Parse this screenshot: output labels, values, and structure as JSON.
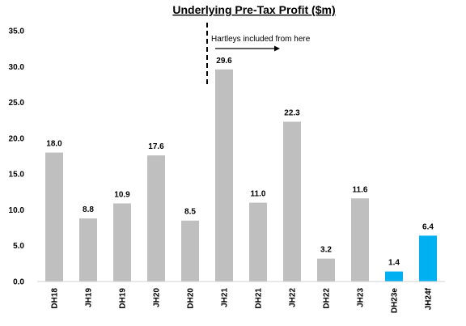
{
  "chart_data": {
    "type": "bar",
    "title": "Underlying Pre-Tax Profit ($m)",
    "xlabel": "",
    "ylabel": "",
    "ylim": [
      0,
      35
    ],
    "yticks": [
      "0.0",
      "5.0",
      "10.0",
      "15.0",
      "20.0",
      "25.0",
      "30.0",
      "35.0"
    ],
    "grid": false,
    "legend": "none",
    "categories": [
      "DH18",
      "JH19",
      "DH19",
      "JH20",
      "DH20",
      "JH21",
      "DH21",
      "JH22",
      "DH22",
      "JH23",
      "DH23e",
      "JH24f"
    ],
    "values": [
      18.0,
      8.8,
      10.9,
      17.6,
      8.5,
      29.6,
      11.0,
      22.3,
      3.2,
      11.6,
      1.4,
      6.4
    ],
    "value_labels": [
      "18.0",
      "8.8",
      "10.9",
      "17.6",
      "8.5",
      "29.6",
      "11.0",
      "22.3",
      "3.2",
      "11.6",
      "1.4",
      "6.4"
    ],
    "bar_colors": [
      "#bfbfbf",
      "#bfbfbf",
      "#bfbfbf",
      "#bfbfbf",
      "#bfbfbf",
      "#bfbfbf",
      "#bfbfbf",
      "#bfbfbf",
      "#bfbfbf",
      "#bfbfbf",
      "#00b0f0",
      "#00b0f0"
    ],
    "annotation": {
      "text": "Hartleys included from here",
      "divider_between": [
        "DH20",
        "JH21"
      ],
      "arrow_direction": "right"
    }
  }
}
